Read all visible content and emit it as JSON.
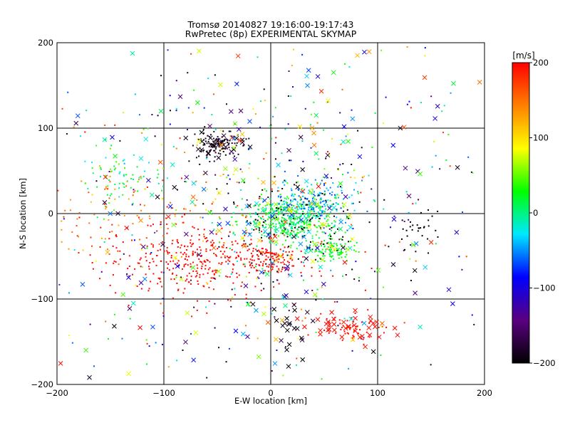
{
  "chart_data": {
    "type": "scatter",
    "title": "Tromsø 20140827 19:16:00-19:17:43",
    "subtitle": "RwPretec (8p) EXPERIMENTAL SKYMAP",
    "xlabel": "E-W location [km]",
    "ylabel": "N-S location [km]",
    "xlim": [
      -200,
      200
    ],
    "ylim": [
      -200,
      200
    ],
    "xticks": [
      -200,
      -100,
      0,
      100,
      200
    ],
    "yticks": [
      -200,
      -100,
      0,
      100,
      200
    ],
    "grid": true,
    "colorbar": {
      "label": "[m/s]",
      "range": [
        -200,
        200
      ],
      "ticks": [
        -200,
        -100,
        0,
        100,
        200
      ],
      "colors": [
        "#000000",
        "#5a0080",
        "#0000ff",
        "#00e8ff",
        "#00ff00",
        "#ffff00",
        "#ff8000",
        "#ff0000"
      ]
    },
    "series": [
      {
        "marker": "dot",
        "clusters": [
          {
            "cx": -50,
            "cy": 80,
            "sx": 12,
            "sy": 8,
            "n": 110,
            "v": -185,
            "dv": 15
          },
          {
            "cx": 20,
            "cy": -5,
            "sx": 22,
            "sy": 14,
            "n": 420,
            "v": 15,
            "dv": 30
          },
          {
            "cx": 40,
            "cy": 15,
            "sx": 18,
            "sy": 12,
            "n": 160,
            "v": -50,
            "dv": 25
          },
          {
            "cx": 60,
            "cy": -42,
            "sx": 10,
            "sy": 7,
            "n": 100,
            "v": 25,
            "dv": 20
          },
          {
            "cx": 0,
            "cy": -55,
            "sx": 12,
            "sy": 9,
            "n": 90,
            "v": 195,
            "dv": 5
          },
          {
            "cx": -65,
            "cy": -55,
            "sx": 45,
            "sy": 22,
            "n": 350,
            "v": 195,
            "dv": 5
          },
          {
            "cx": -140,
            "cy": 40,
            "sx": 18,
            "sy": 18,
            "n": 70,
            "v": 10,
            "dv": 40
          },
          {
            "cx": -120,
            "cy": -5,
            "sx": 55,
            "sy": 25,
            "n": 130,
            "v": 150,
            "dv": 50
          },
          {
            "cx": 20,
            "cy": -10,
            "sx": 35,
            "sy": 30,
            "n": 110,
            "v": -205,
            "dv": 10
          },
          {
            "cx": 140,
            "cy": -15,
            "sx": 12,
            "sy": 10,
            "n": 28,
            "v": -200,
            "dv": 5
          },
          {
            "cx": 75,
            "cy": -135,
            "sx": 14,
            "sy": 8,
            "n": 55,
            "v": 195,
            "dv": 5
          },
          {
            "cx": 0,
            "cy": 0,
            "sx": 110,
            "sy": 110,
            "n": 500,
            "v": 0,
            "dv": 200
          }
        ]
      },
      {
        "marker": "x",
        "clusters": [
          {
            "cx": -50,
            "cy": 80,
            "sx": 12,
            "sy": 8,
            "n": 25,
            "v": -190,
            "dv": 10
          },
          {
            "cx": 70,
            "cy": -135,
            "sx": 20,
            "sy": 10,
            "n": 35,
            "v": 195,
            "dv": 5
          },
          {
            "cx": 15,
            "cy": -140,
            "sx": 15,
            "sy": 25,
            "n": 22,
            "v": -190,
            "dv": 20
          },
          {
            "cx": 20,
            "cy": -15,
            "sx": 30,
            "sy": 20,
            "n": 60,
            "v": 20,
            "dv": 100
          },
          {
            "cx": 0,
            "cy": 0,
            "sx": 110,
            "sy": 110,
            "n": 230,
            "v": 0,
            "dv": 200
          }
        ]
      }
    ]
  }
}
